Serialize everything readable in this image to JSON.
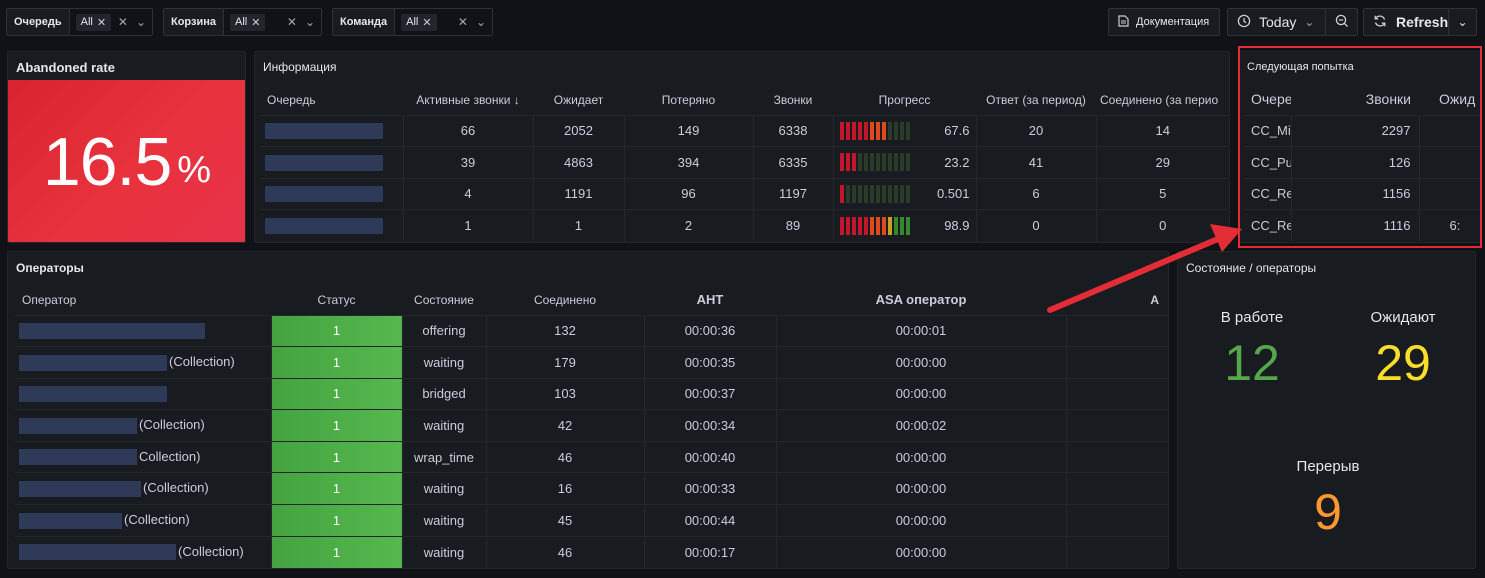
{
  "variables": [
    {
      "label": "Очередь",
      "value": "All"
    },
    {
      "label": "Корзина",
      "value": "All"
    },
    {
      "label": "Команда",
      "value": "All"
    }
  ],
  "toolbar": {
    "docs_label": "Документация",
    "time_label": "Today",
    "refresh_label": "Refresh"
  },
  "abandoned": {
    "title": "Abandoned rate",
    "value": "16.5",
    "unit": "%",
    "color": "#e02f44"
  },
  "info": {
    "title": "Информация",
    "columns": [
      "Очередь",
      "Активные звонки ↓",
      "Ожидает",
      "Потеряно",
      "Звонки",
      "Прогресс",
      "Ответ (за период)",
      "Соединено (за перио"
    ],
    "rows": [
      {
        "active": "66",
        "waiting": "2052",
        "lost": "149",
        "calls": "6338",
        "progress": "67.6",
        "progress_fraction": 0.676,
        "answered": "20",
        "connected": "14"
      },
      {
        "active": "39",
        "waiting": "4863",
        "lost": "394",
        "calls": "6335",
        "progress": "23.2",
        "progress_fraction": 0.232,
        "answered": "41",
        "connected": "29"
      },
      {
        "active": "4",
        "waiting": "1191",
        "lost": "96",
        "calls": "1197",
        "progress": "0.501",
        "progress_fraction": 0.005,
        "answered": "6",
        "connected": "5"
      },
      {
        "active": "1",
        "waiting": "1",
        "lost": "2",
        "calls": "89",
        "progress": "98.9",
        "progress_fraction": 0.989,
        "answered": "0",
        "connected": "0"
      }
    ]
  },
  "next_attempt": {
    "title": "Следующая попытка",
    "columns": [
      "Очере",
      "Звонки",
      "Ожид"
    ],
    "rows": [
      {
        "queue": "CC_Mis",
        "calls": "2297",
        "waiting": ""
      },
      {
        "queue": "CC_Pus",
        "calls": "126",
        "waiting": ""
      },
      {
        "queue": "CC_Ret",
        "calls": "1156",
        "waiting": ""
      },
      {
        "queue": "CC_Ret",
        "calls": "1116",
        "waiting": "6:"
      }
    ]
  },
  "operators": {
    "title": "Операторы",
    "columns": [
      "Оператор",
      "Статус",
      "Состояние",
      "Соединено",
      "AHT",
      "ASA оператор",
      "A"
    ],
    "rows": [
      {
        "suffix": "",
        "status": "1",
        "state": "offering",
        "connected": "132",
        "aht": "00:00:36",
        "asa": "00:00:01"
      },
      {
        "suffix": "(Collection)",
        "status": "1",
        "state": "waiting",
        "connected": "179",
        "aht": "00:00:35",
        "asa": "00:00:00"
      },
      {
        "suffix": "",
        "status": "1",
        "state": "bridged",
        "connected": "103",
        "aht": "00:00:37",
        "asa": "00:00:00"
      },
      {
        "suffix": "(Collection)",
        "status": "1",
        "state": "waiting",
        "connected": "42",
        "aht": "00:00:34",
        "asa": "00:00:02"
      },
      {
        "suffix": "Collection)",
        "status": "1",
        "state": "wrap_time",
        "connected": "46",
        "aht": "00:00:40",
        "asa": "00:00:00"
      },
      {
        "suffix": "(Collection)",
        "status": "1",
        "state": "waiting",
        "connected": "16",
        "aht": "00:00:33",
        "asa": "00:00:00"
      },
      {
        "suffix": "(Collection)",
        "status": "1",
        "state": "waiting",
        "connected": "45",
        "aht": "00:00:44",
        "asa": "00:00:00"
      },
      {
        "suffix": "(Collection)",
        "status": "1",
        "state": "waiting",
        "connected": "46",
        "aht": "00:00:17",
        "asa": "00:00:00"
      }
    ]
  },
  "state_panel": {
    "title": "Состояние / операторы",
    "in_work": {
      "label": "В работе",
      "value": "12",
      "color": "#56a64b"
    },
    "waiting": {
      "label": "Ожидают",
      "value": "29",
      "color": "#fade2a"
    },
    "break": {
      "label": "Перерыв",
      "value": "9",
      "color": "#ff9830"
    }
  }
}
